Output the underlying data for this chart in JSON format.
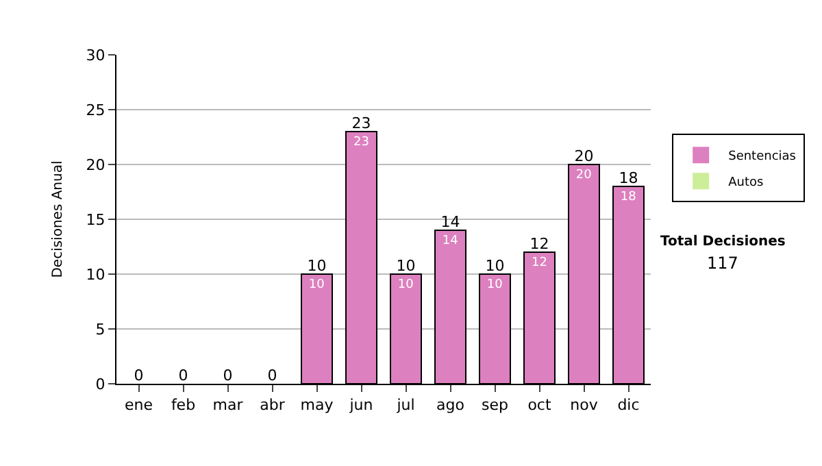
{
  "chart_data": {
    "type": "bar",
    "stacked": true,
    "ylabel": "Decisiones Anual",
    "categories": [
      "ene",
      "feb",
      "mar",
      "abr",
      "may",
      "jun",
      "jul",
      "ago",
      "sep",
      "oct",
      "nov",
      "dic"
    ],
    "series": [
      {
        "name": "Sentencias",
        "color": "#dd80bf",
        "values": [
          0,
          0,
          0,
          0,
          10,
          23,
          10,
          14,
          10,
          12,
          20,
          18
        ],
        "value_labels": [
          null,
          null,
          null,
          null,
          "10",
          "23",
          "10",
          "14",
          "10",
          "12",
          "20",
          "18"
        ]
      },
      {
        "name": "Autos",
        "color": "#ccee99",
        "values": [
          0,
          0,
          0,
          0,
          0,
          0,
          0,
          0,
          0,
          0,
          0,
          0
        ]
      }
    ],
    "totals": [
      "0",
      "0",
      "0",
      "0",
      "10",
      "23",
      "10",
      "14",
      "10",
      "12",
      "20",
      "18"
    ],
    "ylim": [
      0,
      30
    ],
    "yticks": [
      0,
      5,
      10,
      15,
      20,
      25,
      30
    ],
    "grid": "y",
    "legend": "right",
    "annotations": [
      "Total Decisiones",
      "117"
    ]
  }
}
